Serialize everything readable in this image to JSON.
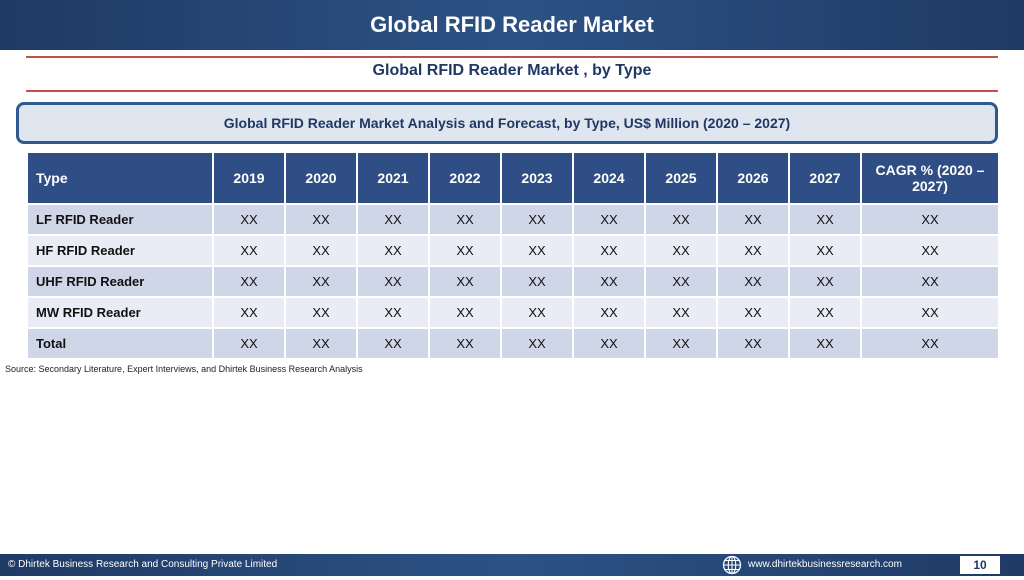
{
  "header": {
    "title": "Global RFID Reader Market"
  },
  "subtitle": "Global RFID Reader Market , by Type",
  "caption": "Global RFID Reader Market  Analysis and Forecast, by Type, US$ Million (2020 – 2027)",
  "table": {
    "headers": [
      "Type",
      "2019",
      "2020",
      "2021",
      "2022",
      "2023",
      "2024",
      "2025",
      "2026",
      "2027",
      "CAGR % (2020 – 2027)"
    ],
    "rows": [
      [
        "LF RFID Reader",
        "XX",
        "XX",
        "XX",
        "XX",
        "XX",
        "XX",
        "XX",
        "XX",
        "XX",
        "XX"
      ],
      [
        "HF RFID Reader",
        "XX",
        "XX",
        "XX",
        "XX",
        "XX",
        "XX",
        "XX",
        "XX",
        "XX",
        "XX"
      ],
      [
        "UHF RFID Reader",
        "XX",
        "XX",
        "XX",
        "XX",
        "XX",
        "XX",
        "XX",
        "XX",
        "XX",
        "XX"
      ],
      [
        "MW RFID Reader",
        "XX",
        "XX",
        "XX",
        "XX",
        "XX",
        "XX",
        "XX",
        "XX",
        "XX",
        "XX"
      ],
      [
        "Total",
        "XX",
        "XX",
        "XX",
        "XX",
        "XX",
        "XX",
        "XX",
        "XX",
        "XX",
        "XX"
      ]
    ]
  },
  "source": "Source: Secondary Literature, Expert Interviews, and Dhirtek Business Research Analysis",
  "footer": {
    "copyright": "© Dhirtek Business Research and Consulting Private Limited",
    "website": "www.dhirtekbusinessresearch.com",
    "page_number": "10",
    "globe_icon": "globe-icon"
  },
  "colors": {
    "header_bg": "#2c5285",
    "table_header_bg": "#2f4e86",
    "accent_rule": "#c0504d",
    "row_odd": "#cfd6e8",
    "row_even": "#e9ecf4"
  }
}
